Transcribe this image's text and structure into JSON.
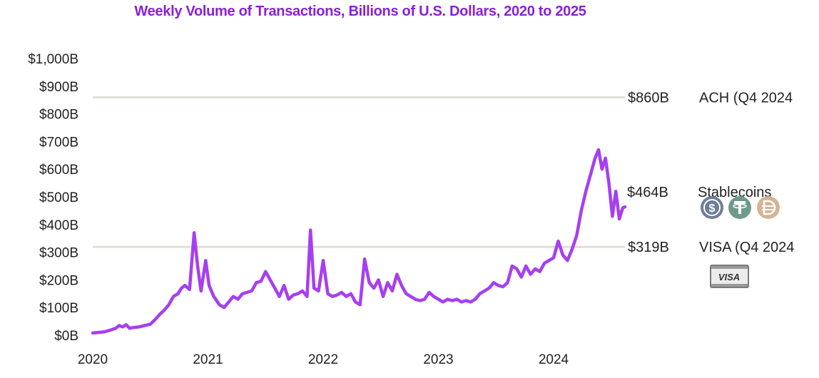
{
  "chart_data": {
    "type": "line",
    "title": "Weekly Volume of Transactions, Billions of U.S. Dollars, 2020 to 2025",
    "xlabel": "",
    "ylabel": "",
    "ylim": [
      0,
      1000
    ],
    "xlim": [
      2020.0,
      2024.62
    ],
    "y_ticks": [
      {
        "value": 0,
        "label": "$0B"
      },
      {
        "value": 100,
        "label": "$100B"
      },
      {
        "value": 200,
        "label": "$200B"
      },
      {
        "value": 300,
        "label": "$300B"
      },
      {
        "value": 400,
        "label": "$400B"
      },
      {
        "value": 500,
        "label": "$500B"
      },
      {
        "value": 600,
        "label": "$600B"
      },
      {
        "value": 700,
        "label": "$700B"
      },
      {
        "value": 800,
        "label": "$800B"
      },
      {
        "value": 900,
        "label": "$900B"
      },
      {
        "value": 1000,
        "label": "$1,000B"
      }
    ],
    "x_ticks": [
      {
        "value": 2020,
        "label": "2020"
      },
      {
        "value": 2021,
        "label": "2021"
      },
      {
        "value": 2022,
        "label": "2022"
      },
      {
        "value": 2023,
        "label": "2023"
      },
      {
        "value": 2024,
        "label": "2024"
      }
    ],
    "series": [
      {
        "name": "Stablecoins",
        "color": "#a63ff0",
        "points": [
          [
            2020.0,
            8
          ],
          [
            2020.05,
            10
          ],
          [
            2020.1,
            12
          ],
          [
            2020.15,
            18
          ],
          [
            2020.2,
            25
          ],
          [
            2020.23,
            35
          ],
          [
            2020.26,
            30
          ],
          [
            2020.29,
            38
          ],
          [
            2020.32,
            25
          ],
          [
            2020.36,
            28
          ],
          [
            2020.4,
            30
          ],
          [
            2020.45,
            35
          ],
          [
            2020.5,
            40
          ],
          [
            2020.55,
            60
          ],
          [
            2020.58,
            75
          ],
          [
            2020.62,
            90
          ],
          [
            2020.66,
            110
          ],
          [
            2020.7,
            140
          ],
          [
            2020.74,
            150
          ],
          [
            2020.77,
            170
          ],
          [
            2020.8,
            180
          ],
          [
            2020.84,
            165
          ],
          [
            2020.88,
            370
          ],
          [
            2020.91,
            250
          ],
          [
            2020.94,
            160
          ],
          [
            2020.98,
            270
          ],
          [
            2021.01,
            180
          ],
          [
            2021.05,
            140
          ],
          [
            2021.1,
            110
          ],
          [
            2021.14,
            100
          ],
          [
            2021.18,
            120
          ],
          [
            2021.22,
            140
          ],
          [
            2021.26,
            130
          ],
          [
            2021.3,
            150
          ],
          [
            2021.34,
            155
          ],
          [
            2021.38,
            160
          ],
          [
            2021.42,
            190
          ],
          [
            2021.46,
            195
          ],
          [
            2021.5,
            230
          ],
          [
            2021.54,
            200
          ],
          [
            2021.58,
            170
          ],
          [
            2021.62,
            140
          ],
          [
            2021.66,
            180
          ],
          [
            2021.7,
            130
          ],
          [
            2021.74,
            145
          ],
          [
            2021.78,
            150
          ],
          [
            2021.82,
            160
          ],
          [
            2021.86,
            140
          ],
          [
            2021.89,
            380
          ],
          [
            2021.92,
            170
          ],
          [
            2021.96,
            160
          ],
          [
            2022.0,
            270
          ],
          [
            2022.04,
            150
          ],
          [
            2022.08,
            140
          ],
          [
            2022.12,
            145
          ],
          [
            2022.16,
            155
          ],
          [
            2022.2,
            140
          ],
          [
            2022.24,
            150
          ],
          [
            2022.28,
            120
          ],
          [
            2022.32,
            110
          ],
          [
            2022.36,
            275
          ],
          [
            2022.4,
            190
          ],
          [
            2022.44,
            170
          ],
          [
            2022.48,
            200
          ],
          [
            2022.52,
            140
          ],
          [
            2022.56,
            190
          ],
          [
            2022.6,
            160
          ],
          [
            2022.64,
            220
          ],
          [
            2022.68,
            180
          ],
          [
            2022.72,
            150
          ],
          [
            2022.76,
            140
          ],
          [
            2022.8,
            130
          ],
          [
            2022.84,
            125
          ],
          [
            2022.88,
            130
          ],
          [
            2022.92,
            155
          ],
          [
            2022.96,
            140
          ],
          [
            2023.0,
            130
          ],
          [
            2023.04,
            120
          ],
          [
            2023.08,
            130
          ],
          [
            2023.12,
            125
          ],
          [
            2023.16,
            130
          ],
          [
            2023.2,
            120
          ],
          [
            2023.24,
            125
          ],
          [
            2023.28,
            120
          ],
          [
            2023.32,
            130
          ],
          [
            2023.36,
            150
          ],
          [
            2023.4,
            160
          ],
          [
            2023.44,
            170
          ],
          [
            2023.48,
            190
          ],
          [
            2023.52,
            180
          ],
          [
            2023.56,
            175
          ],
          [
            2023.6,
            190
          ],
          [
            2023.64,
            250
          ],
          [
            2023.68,
            240
          ],
          [
            2023.72,
            210
          ],
          [
            2023.76,
            250
          ],
          [
            2023.8,
            220
          ],
          [
            2023.84,
            240
          ],
          [
            2023.88,
            230
          ],
          [
            2023.92,
            260
          ],
          [
            2023.96,
            270
          ],
          [
            2024.0,
            280
          ],
          [
            2024.04,
            340
          ],
          [
            2024.08,
            290
          ],
          [
            2024.12,
            270
          ],
          [
            2024.16,
            310
          ],
          [
            2024.2,
            360
          ],
          [
            2024.24,
            450
          ],
          [
            2024.28,
            520
          ],
          [
            2024.32,
            580
          ],
          [
            2024.36,
            640
          ],
          [
            2024.39,
            670
          ],
          [
            2024.42,
            600
          ],
          [
            2024.45,
            640
          ],
          [
            2024.48,
            550
          ],
          [
            2024.51,
            430
          ],
          [
            2024.54,
            520
          ],
          [
            2024.57,
            420
          ],
          [
            2024.6,
            460
          ],
          [
            2024.62,
            464
          ]
        ]
      }
    ],
    "reference_lines": [
      {
        "value": 860,
        "value_label": "$860B",
        "label": "ACH (Q4 2024",
        "color": "#e3ded6"
      },
      {
        "value": 319,
        "value_label": "$319B",
        "label": "VISA (Q4 2024",
        "color": "#e3ded6"
      }
    ],
    "end_annotation": {
      "value": 464,
      "value_label": "$464B",
      "label": "Stablecoins"
    },
    "legend_icons": [
      {
        "icon": "usdc-coin-icon",
        "color": "#6e7d98"
      },
      {
        "icon": "tether-coin-icon",
        "color": "#6e9a8c"
      },
      {
        "icon": "dai-coin-icon",
        "color": "#d4b494"
      }
    ],
    "visa_badge_text": "VISA"
  }
}
